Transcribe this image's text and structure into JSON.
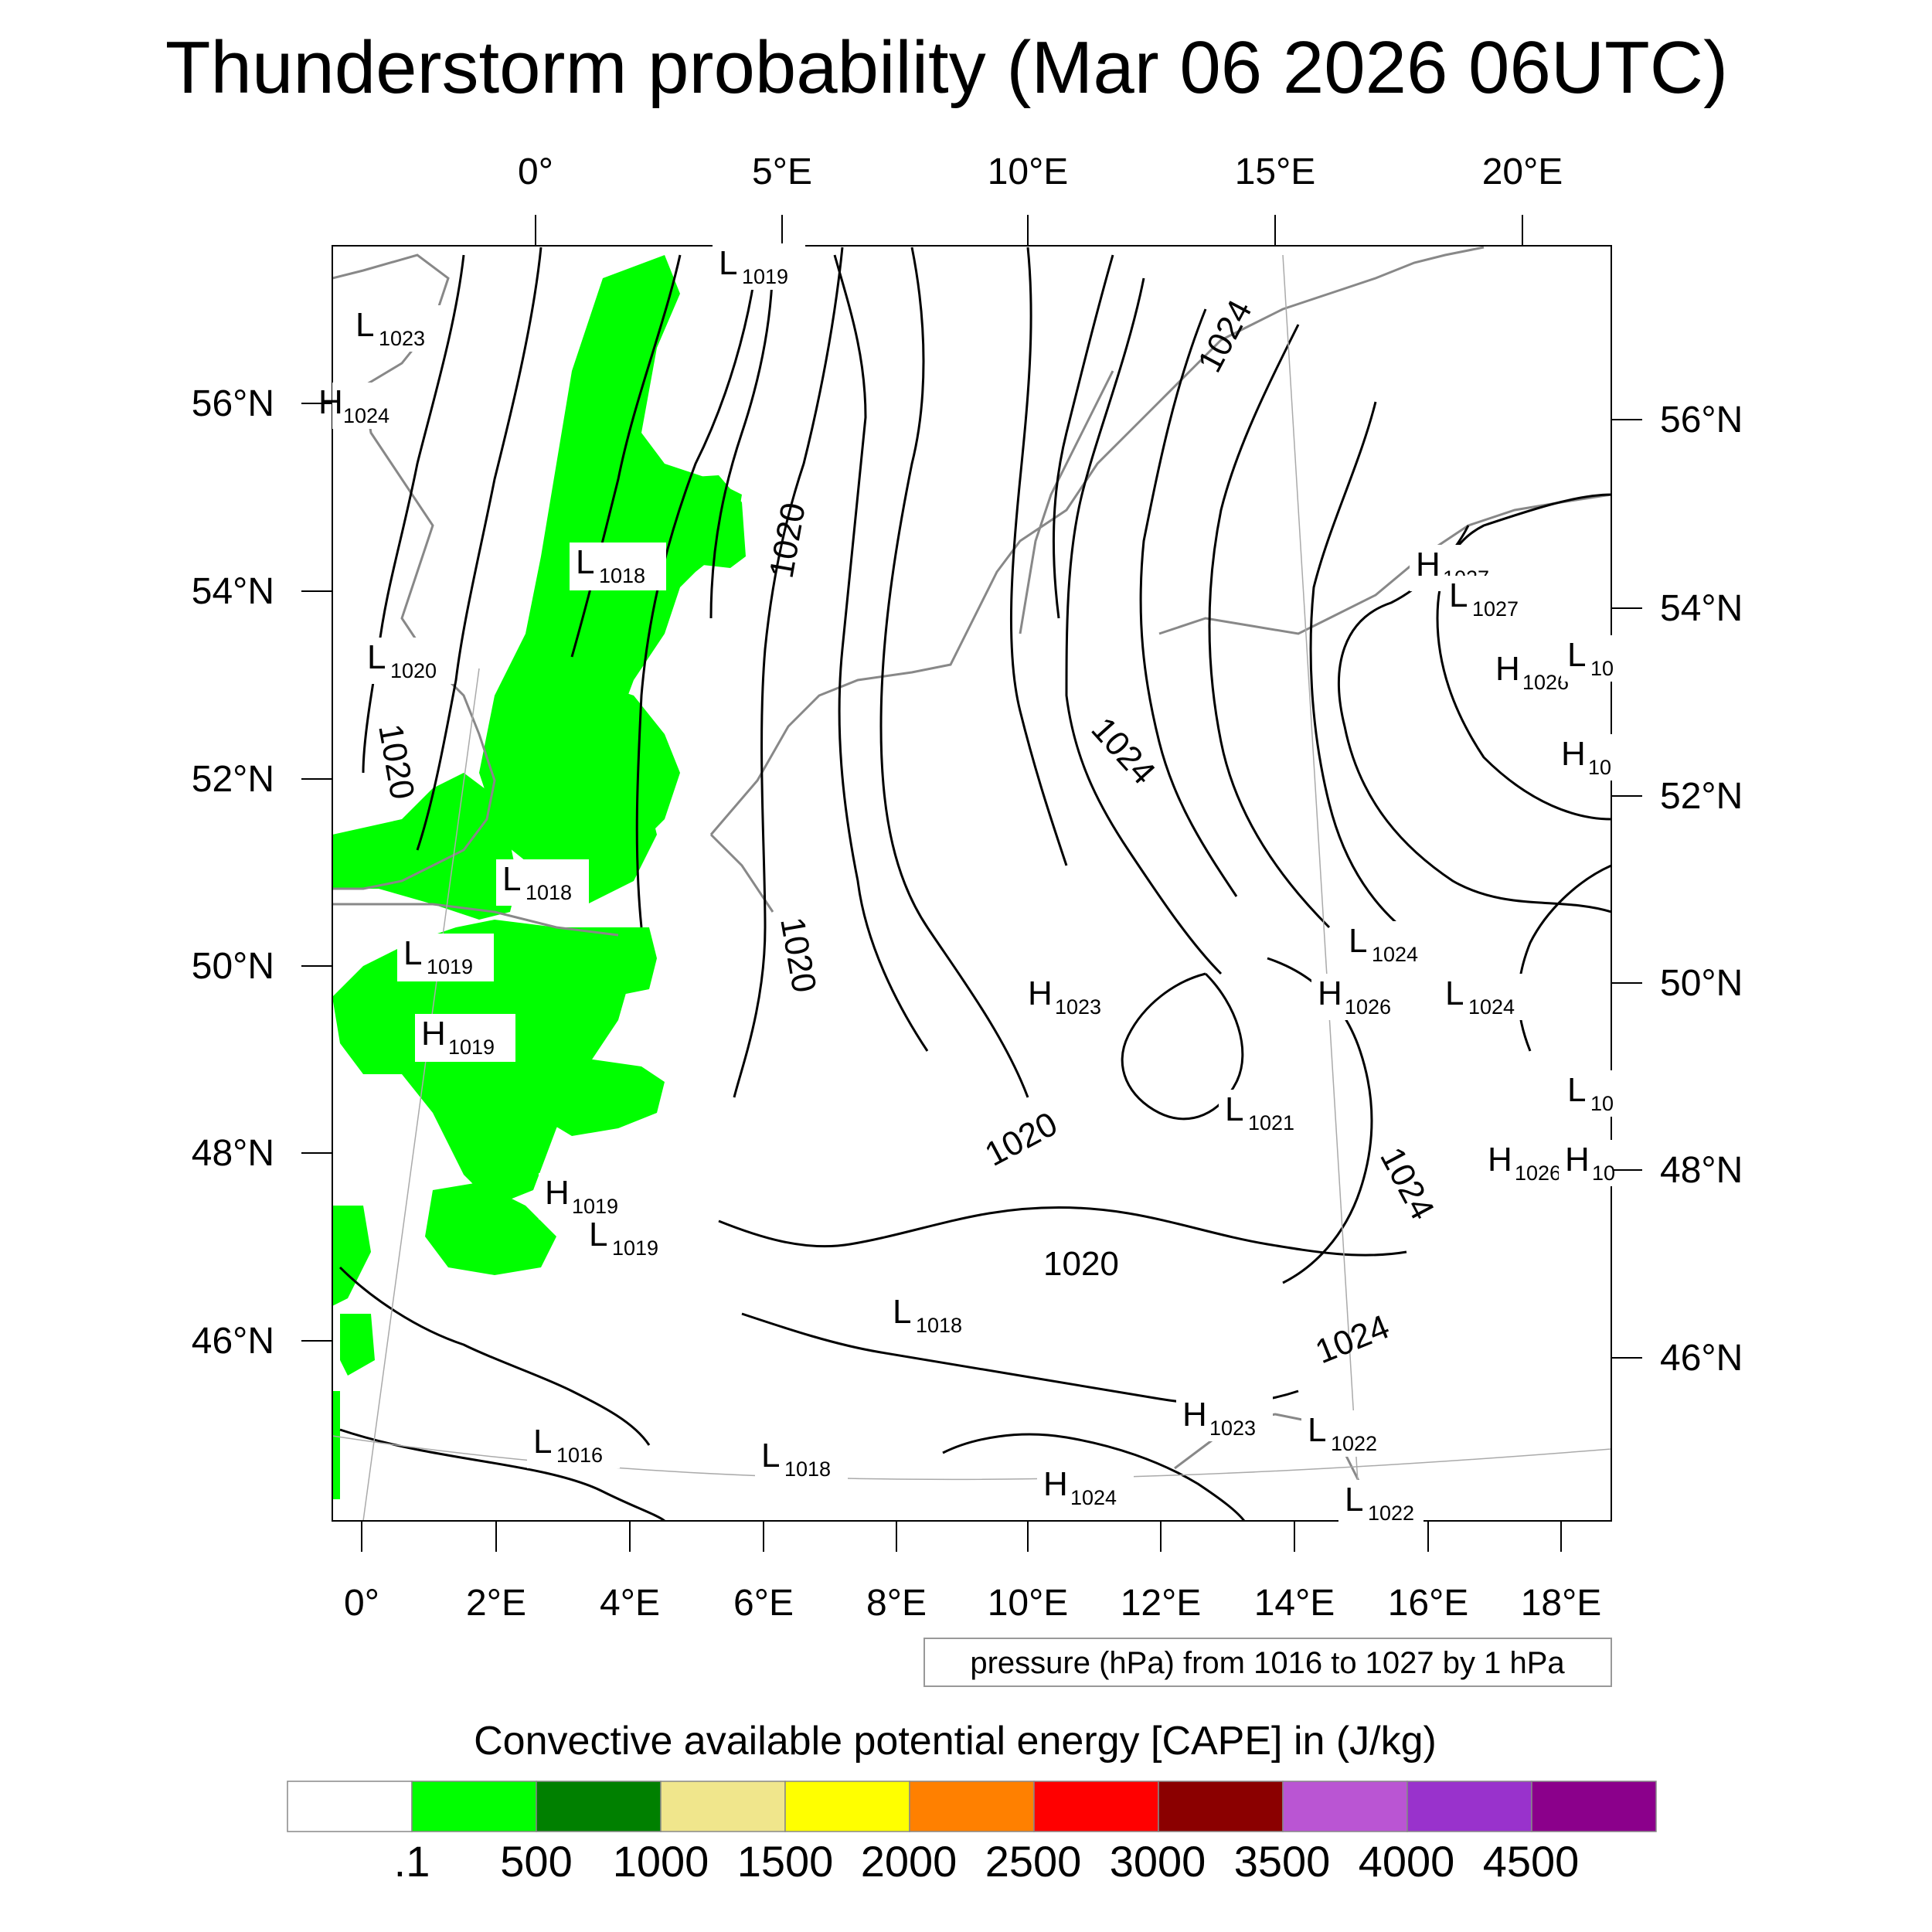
{
  "title": "Thunderstorm probability (Mar 06 2026 06UTC)",
  "map": {
    "lon_top_labels": [
      "0°",
      "5°E",
      "10°E",
      "15°E",
      "20°E"
    ],
    "lon_bottom_labels": [
      "0°",
      "2°E",
      "4°E",
      "6°E",
      "8°E",
      "10°E",
      "12°E",
      "14°E",
      "16°E",
      "18°E"
    ],
    "lat_left_labels": [
      "56°N",
      "54°N",
      "52°N",
      "50°N",
      "48°N",
      "46°N"
    ],
    "lat_right_labels": [
      "56°N",
      "54°N",
      "52°N",
      "50°N",
      "48°N",
      "46°N"
    ],
    "isobar_labels": [
      "1024",
      "1020",
      "1020",
      "1020",
      "1024",
      "1020",
      "1020",
      "1024",
      "1024"
    ],
    "pressure_centers": [
      {
        "type": "L",
        "value": "1019"
      },
      {
        "type": "L",
        "value": "1023"
      },
      {
        "type": "H",
        "value": "1024"
      },
      {
        "type": "L",
        "value": "1018"
      },
      {
        "type": "L",
        "value": "1020"
      },
      {
        "type": "L",
        "value": "1018"
      },
      {
        "type": "L",
        "value": "1019"
      },
      {
        "type": "H",
        "value": "1019"
      },
      {
        "type": "H",
        "value": "1019"
      },
      {
        "type": "L",
        "value": "1019"
      },
      {
        "type": "L",
        "value": "1016"
      },
      {
        "type": "L",
        "value": "1018"
      },
      {
        "type": "H",
        "value": "1024"
      },
      {
        "type": "L",
        "value": "1018"
      },
      {
        "type": "H",
        "value": "1023"
      },
      {
        "type": "L",
        "value": "1021"
      },
      {
        "type": "H",
        "value": "1023"
      },
      {
        "type": "L",
        "value": "1022"
      },
      {
        "type": "L",
        "value": "1022"
      },
      {
        "type": "H",
        "value": "1026"
      },
      {
        "type": "L",
        "value": "1024"
      },
      {
        "type": "L",
        "value": "1024"
      },
      {
        "type": "H",
        "value": "1027"
      },
      {
        "type": "L",
        "value": "1027"
      },
      {
        "type": "H",
        "value": "1026"
      },
      {
        "type": "L",
        "value": "10"
      },
      {
        "type": "H",
        "value": "10"
      },
      {
        "type": "L",
        "value": "10"
      },
      {
        "type": "H",
        "value": "1026"
      },
      {
        "type": "H",
        "value": "10"
      }
    ]
  },
  "pressure_note": "pressure (hPa) from 1016 to 1027 by 1 hPa",
  "colorbar": {
    "title": "Convective available potential energy [CAPE] in (J/kg)",
    "colors": [
      "#ffffff",
      "#00ff00",
      "#008000",
      "#f0e68c",
      "#ffff00",
      "#ff8000",
      "#ff0000",
      "#8b0000",
      "#ba55d3",
      "#9932cc",
      "#8b008b"
    ],
    "labels": [
      ".1",
      "500",
      "1000",
      "1500",
      "2000",
      "2500",
      "3000",
      "3500",
      "4000",
      "4500"
    ]
  },
  "accent_colors": {
    "cape_green": "#00ff00",
    "isobar": "#000000",
    "coastline": "#888888"
  }
}
